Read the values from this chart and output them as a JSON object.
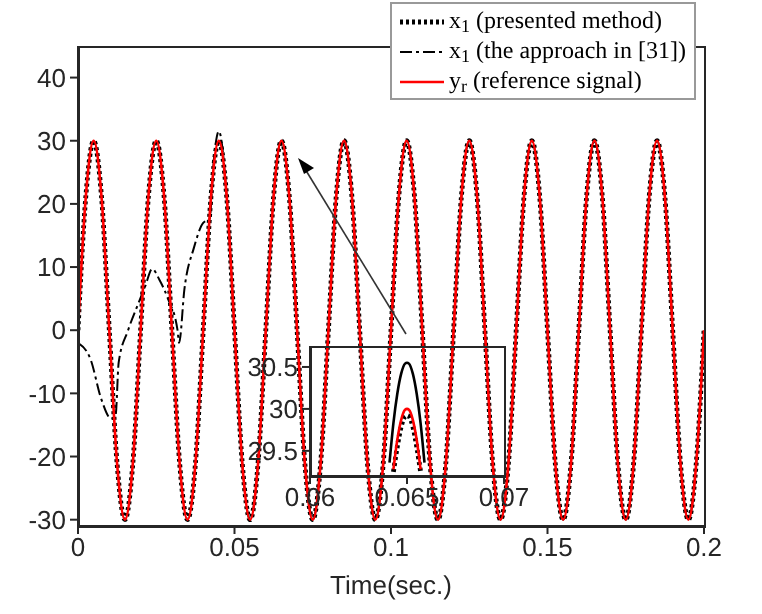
{
  "chart_data": [
    {
      "type": "line",
      "xlabel": "Time(sec.)",
      "legend": "top right",
      "grid": false,
      "xlim": [
        0,
        0.2
      ],
      "xticks": [
        0,
        0.05,
        0.1,
        0.15,
        0.2
      ],
      "ylim": [
        -31,
        45
      ],
      "yticks": [
        -30,
        -20,
        -10,
        0,
        10,
        20,
        30,
        40
      ],
      "x": [
        0,
        0.0025,
        0.005,
        0.0075,
        0.01,
        0.0125,
        0.015,
        0.0175,
        0.02,
        0.0225,
        0.025,
        0.0275,
        0.03,
        0.0325,
        0.035,
        0.0375,
        0.04,
        0.0425,
        0.045,
        0.0475,
        0.05,
        0.0525,
        0.055,
        0.0575,
        0.06,
        0.0625,
        0.065,
        0.0675,
        0.07,
        0.0725,
        0.075,
        0.0775,
        0.08,
        0.0825,
        0.085,
        0.0875,
        0.09,
        0.0925,
        0.095,
        0.0975,
        0.1,
        0.1025,
        0.105,
        0.1075,
        0.11,
        0.1125,
        0.115,
        0.1175,
        0.12,
        0.1225,
        0.125,
        0.1275,
        0.13,
        0.1325,
        0.135,
        0.1375,
        0.14,
        0.1425,
        0.145,
        0.1475,
        0.15,
        0.1525,
        0.155,
        0.1575,
        0.16,
        0.1625,
        0.165,
        0.1675,
        0.17,
        0.1725,
        0.175,
        0.1775,
        0.18,
        0.1825,
        0.185,
        0.1875,
        0.19,
        0.1925,
        0.195,
        0.1975,
        0.2
      ],
      "series": [
        {
          "name": "x$_{1}$ (presented method)",
          "color": "#000000",
          "line_style": "dotted",
          "values": [
            0,
            21.2,
            30,
            21.2,
            0,
            -21.2,
            -30,
            -21.2,
            0,
            21.2,
            30,
            21.2,
            0,
            -21.2,
            -30,
            -21.2,
            0,
            21.2,
            30,
            21.2,
            0,
            -21.2,
            -30,
            -21.2,
            0,
            21.2,
            30,
            21.2,
            0,
            -21.2,
            -30,
            -21.2,
            0,
            21.2,
            30,
            21.2,
            0,
            -21.2,
            -30,
            -21.2,
            0,
            21.2,
            30,
            21.2,
            0,
            -21.2,
            -30,
            -21.2,
            0,
            21.2,
            30,
            21.2,
            0,
            -21.2,
            -30,
            -21.2,
            0,
            21.2,
            30,
            21.2,
            0,
            -21.2,
            -30,
            -21.2,
            0,
            21.2,
            30,
            21.2,
            0,
            -21.2,
            -30,
            -21.2,
            0,
            21.2,
            30,
            21.2,
            0,
            -21.2,
            -30,
            -21.2,
            0
          ]
        },
        {
          "name": "x$_{1}$ (the approach in [31])",
          "color": "#000000",
          "line_style": "dashed",
          "x": [
            0,
            0.004,
            0.0075,
            0.0106,
            0.012,
            0.013,
            0.016,
            0.019,
            0.0215,
            0.0237,
            0.026,
            0.0288,
            0.0318,
            0.0323,
            0.034,
            0.037,
            0.04,
            0.042,
            0.0435,
            0.045,
            0.0475,
            0.05,
            0.0525,
            0.055,
            0.0575,
            0.06,
            0.0625,
            0.065,
            0.0675,
            0.07,
            0.0725,
            0.075,
            0.0775,
            0.08,
            0.0825,
            0.085,
            0.0875,
            0.09,
            0.0925,
            0.095,
            0.0975,
            0.1,
            0.1025,
            0.105,
            0.1075,
            0.11,
            0.1125,
            0.115,
            0.1175,
            0.12,
            0.1225,
            0.125,
            0.1275,
            0.13,
            0.1325,
            0.135,
            0.1375,
            0.14,
            0.1425,
            0.145,
            0.1475,
            0.15,
            0.1525,
            0.155,
            0.1575,
            0.16,
            0.1625,
            0.165,
            0.1675,
            0.17,
            0.1725,
            0.175,
            0.1775,
            0.18,
            0.1825,
            0.185,
            0.1875,
            0.19,
            0.1925,
            0.195,
            0.1975,
            0.2
          ],
          "values": [
            -2,
            -4.6,
            -11,
            -14,
            -13.5,
            -5.1,
            0,
            3.9,
            7,
            9.7,
            8,
            4.9,
            0,
            -2,
            6.5,
            13,
            17,
            17.6,
            27.5,
            31.5,
            21.2,
            0,
            -21.2,
            -30,
            -21.2,
            0,
            21.2,
            30,
            21.2,
            0,
            -21.2,
            -30,
            -21.2,
            0,
            21.2,
            30,
            21.2,
            0,
            -21.2,
            -30,
            -21.2,
            0,
            21.2,
            30,
            21.2,
            0,
            -21.2,
            -30,
            -21.2,
            0,
            21.2,
            30,
            21.2,
            0,
            -21.2,
            -30,
            -21.2,
            0,
            21.2,
            30,
            21.2,
            0,
            -21.2,
            -30,
            -21.2,
            0,
            21.2,
            30,
            21.2,
            0,
            -21.2,
            -30,
            -21.2,
            0,
            21.2,
            30,
            21.2,
            0,
            -21.2,
            -30,
            -21.2,
            0
          ]
        },
        {
          "name": "y$_{r}$ (reference signal)",
          "color": "#ff0000",
          "line_style": "solid",
          "values": [
            0,
            21.2,
            30,
            21.2,
            0,
            -21.2,
            -30,
            -21.2,
            0,
            21.2,
            30,
            21.2,
            0,
            -21.2,
            -30,
            -21.2,
            0,
            21.2,
            30,
            21.2,
            0,
            -21.2,
            -30,
            -21.2,
            0,
            21.2,
            30,
            21.2,
            0,
            -21.2,
            -30,
            -21.2,
            0,
            21.2,
            30,
            21.2,
            0,
            -21.2,
            -30,
            -21.2,
            0,
            21.2,
            30,
            21.2,
            0,
            -21.2,
            -30,
            -21.2,
            0,
            21.2,
            30,
            21.2,
            0,
            -21.2,
            -30,
            -21.2,
            0,
            21.2,
            30,
            21.2,
            0,
            -21.2,
            -30,
            -21.2,
            0,
            21.2,
            30,
            21.2,
            0,
            -21.2,
            -30,
            -21.2,
            0,
            21.2,
            30,
            21.2,
            0,
            -21.2,
            -30,
            -21.2,
            0
          ]
        }
      ]
    },
    {
      "type": "line",
      "grid": false,
      "xlim": [
        0.06,
        0.07
      ],
      "xticks": [
        0.06,
        0.065,
        0.07
      ],
      "ylim": [
        29.2,
        30.75
      ],
      "yticks": [
        29.5,
        30,
        30.5
      ],
      "x": [
        0.0643,
        0.0645,
        0.0647,
        0.0649,
        0.065,
        0.0651,
        0.0653,
        0.0655,
        0.0657
      ],
      "series": [
        {
          "color": "#000000",
          "line_style": "dotted",
          "values": [
            29.25,
            29.55,
            29.79,
            29.91,
            29.92,
            29.91,
            29.79,
            29.55,
            29.25
          ]
        },
        {
          "color": "#000000",
          "line_style": "solid",
          "x": [
            0.0641,
            0.0643,
            0.0645,
            0.0647,
            0.0649,
            0.065,
            0.0651,
            0.0653,
            0.0655,
            0.0657,
            0.0659
          ],
          "values": [
            29.36,
            29.83,
            30.18,
            30.42,
            30.54,
            30.55,
            30.54,
            30.42,
            30.18,
            29.83,
            29.36
          ]
        },
        {
          "color": "#ff0000",
          "line_style": "solid",
          "values": [
            29.28,
            29.63,
            29.87,
            29.99,
            30,
            29.99,
            29.87,
            29.63,
            29.28
          ]
        }
      ]
    }
  ]
}
